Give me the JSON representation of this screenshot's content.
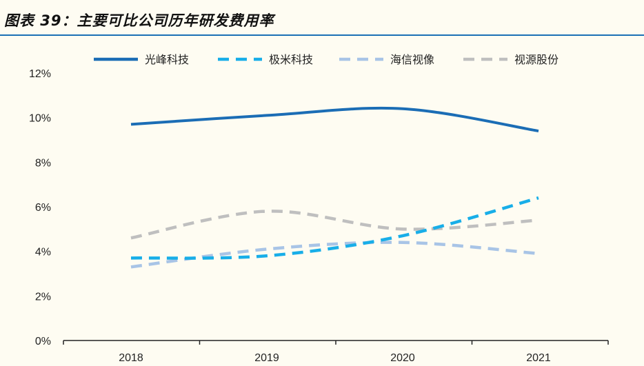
{
  "header": {
    "figure_title": "图表 39：主要可比公司历年研发费用率"
  },
  "colors": {
    "background": "#fefcf2",
    "title_rule": "#1a6fb5",
    "axis": "#222222"
  },
  "chart_data": {
    "type": "line",
    "title": "图表 39：主要可比公司历年研发费用率",
    "xlabel": "",
    "ylabel": "",
    "x": [
      "2018",
      "2019",
      "2020",
      "2021"
    ],
    "ylim": [
      0,
      12
    ],
    "yticks": [
      "0%",
      "2%",
      "4%",
      "6%",
      "8%",
      "10%",
      "12%"
    ],
    "grid": false,
    "legend_position": "top",
    "series": [
      {
        "name": "光峰科技",
        "values": [
          9.7,
          10.1,
          10.4,
          9.4
        ],
        "color": "#1b6db5",
        "style": "solid"
      },
      {
        "name": "极米科技",
        "values": [
          3.7,
          3.8,
          4.7,
          6.4
        ],
        "color": "#18aee8",
        "style": "dashed"
      },
      {
        "name": "海信视像",
        "values": [
          3.3,
          4.1,
          4.4,
          3.9
        ],
        "color": "#a8c4e6",
        "style": "dashed"
      },
      {
        "name": "视源股份",
        "values": [
          4.6,
          5.8,
          5.0,
          5.4
        ],
        "color": "#bfbfbf",
        "style": "dashed"
      }
    ]
  }
}
